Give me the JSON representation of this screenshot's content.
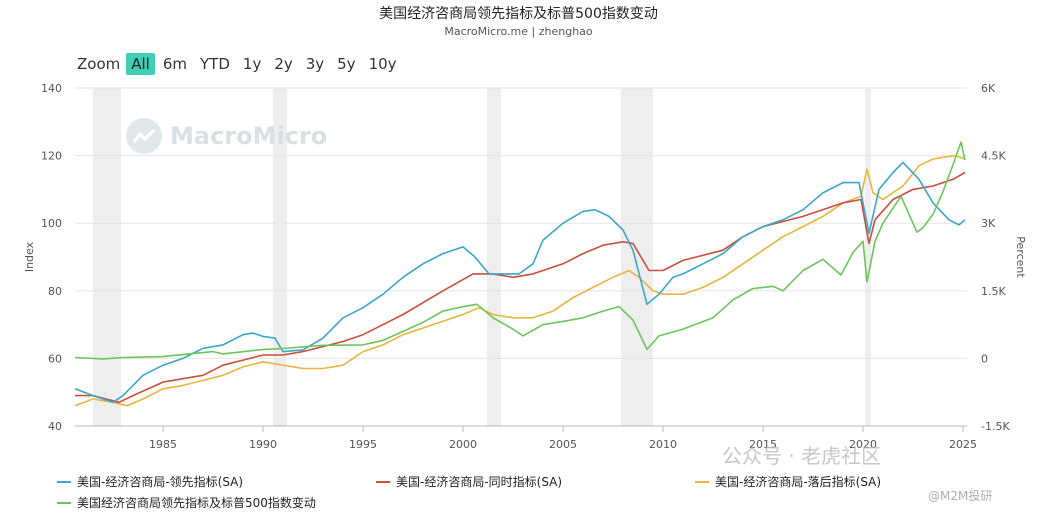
{
  "header": {
    "title": "美国经济咨商局领先指标及标普500指数变动",
    "subtitle": "MacroMicro.me | zhenghao"
  },
  "zoom": {
    "label": "Zoom",
    "options": [
      "All",
      "6m",
      "YTD",
      "1y",
      "2y",
      "3y",
      "5y",
      "10y"
    ],
    "active": "All"
  },
  "watermark": {
    "text": "MacroMicro"
  },
  "footer_mark": {
    "text": "公众号 · 老虎社区",
    "sub": "@M2M投研"
  },
  "colors": {
    "leading": "#3ba6c9",
    "coincident": "#c8503c",
    "lagging": "#e8b53e",
    "sp500": "#6cc55b",
    "recession": "#eeeeee"
  },
  "chart_data": {
    "type": "line",
    "x_ticks": [
      "1985",
      "1990",
      "1995",
      "2000",
      "2005",
      "2010",
      "2015",
      "2020",
      "2025"
    ],
    "xlim": [
      1980.6,
      2025.2
    ],
    "y_left": {
      "label": "Index",
      "ticks": [
        "40",
        "60",
        "80",
        "100",
        "120",
        "140"
      ],
      "lim": [
        40,
        140
      ]
    },
    "y_right": {
      "label": "Percent",
      "ticks": [
        "-1.5K",
        "0",
        "1.5K",
        "3K",
        "4.5K",
        "6K"
      ],
      "lim": [
        -1500,
        6000
      ]
    },
    "recessions": [
      [
        1981.5,
        1982.9
      ],
      [
        1990.5,
        1991.2
      ],
      [
        2001.2,
        2001.9
      ],
      [
        2007.9,
        2009.5
      ],
      [
        2020.1,
        2020.4
      ]
    ],
    "series": [
      {
        "name": "美国-经济咨商局-领先指标(SA)",
        "axis": "left",
        "points": [
          [
            1980.6,
            51
          ],
          [
            1981.5,
            49
          ],
          [
            1982.5,
            47
          ],
          [
            1983.0,
            49
          ],
          [
            1984.0,
            55
          ],
          [
            1985.0,
            58
          ],
          [
            1986.0,
            60
          ],
          [
            1987.0,
            63
          ],
          [
            1988.0,
            64
          ],
          [
            1989.0,
            67
          ],
          [
            1989.5,
            67.5
          ],
          [
            1990.0,
            66.5
          ],
          [
            1990.6,
            66
          ],
          [
            1991.0,
            62
          ],
          [
            1992.0,
            62.5
          ],
          [
            1993.0,
            66
          ],
          [
            1994.0,
            72
          ],
          [
            1995.0,
            75
          ],
          [
            1996.0,
            79
          ],
          [
            1997.0,
            84
          ],
          [
            1998.0,
            88
          ],
          [
            1999.0,
            91
          ],
          [
            2000.0,
            93
          ],
          [
            2000.6,
            90
          ],
          [
            2001.3,
            85
          ],
          [
            2002.0,
            85
          ],
          [
            2002.8,
            85
          ],
          [
            2003.5,
            88
          ],
          [
            2004.0,
            95
          ],
          [
            2005.0,
            100
          ],
          [
            2006.0,
            103.5
          ],
          [
            2006.6,
            104
          ],
          [
            2007.3,
            102
          ],
          [
            2008.0,
            98
          ],
          [
            2008.5,
            92
          ],
          [
            2009.2,
            76
          ],
          [
            2009.8,
            79
          ],
          [
            2010.5,
            84
          ],
          [
            2011.0,
            85
          ],
          [
            2012.0,
            88
          ],
          [
            2013.0,
            91
          ],
          [
            2014.0,
            96
          ],
          [
            2015.0,
            99
          ],
          [
            2016.0,
            101
          ],
          [
            2017.0,
            104
          ],
          [
            2018.0,
            109
          ],
          [
            2019.0,
            112
          ],
          [
            2019.8,
            112
          ],
          [
            2020.3,
            97
          ],
          [
            2020.8,
            110
          ],
          [
            2021.5,
            115
          ],
          [
            2022.0,
            118
          ],
          [
            2022.8,
            113
          ],
          [
            2023.5,
            106
          ],
          [
            2024.3,
            101
          ],
          [
            2024.8,
            99.5
          ],
          [
            2025.1,
            101
          ]
        ]
      },
      {
        "name": "美国-经济咨商局-同时指标(SA)",
        "axis": "left",
        "points": [
          [
            1980.6,
            49
          ],
          [
            1981.5,
            49
          ],
          [
            1982.8,
            47
          ],
          [
            1983.5,
            49
          ],
          [
            1985.0,
            53
          ],
          [
            1987.0,
            55
          ],
          [
            1988.0,
            58
          ],
          [
            1990.0,
            61
          ],
          [
            1991.0,
            61
          ],
          [
            1992.0,
            62
          ],
          [
            1994.0,
            65
          ],
          [
            1995.0,
            67
          ],
          [
            1997.0,
            73
          ],
          [
            1999.0,
            80
          ],
          [
            2000.5,
            85
          ],
          [
            2001.5,
            85
          ],
          [
            2002.5,
            84
          ],
          [
            2003.5,
            85
          ],
          [
            2005.0,
            88
          ],
          [
            2006.0,
            91
          ],
          [
            2007.0,
            93.5
          ],
          [
            2008.0,
            94.5
          ],
          [
            2008.5,
            94
          ],
          [
            2009.3,
            86
          ],
          [
            2010.0,
            86
          ],
          [
            2011.0,
            89
          ],
          [
            2013.0,
            92
          ],
          [
            2014.0,
            96
          ],
          [
            2015.0,
            99
          ],
          [
            2017.0,
            102
          ],
          [
            2019.0,
            106
          ],
          [
            2019.9,
            107
          ],
          [
            2020.3,
            94
          ],
          [
            2020.6,
            101
          ],
          [
            2021.5,
            107
          ],
          [
            2022.5,
            110
          ],
          [
            2023.5,
            111
          ],
          [
            2024.5,
            113
          ],
          [
            2025.1,
            115
          ]
        ]
      },
      {
        "name": "美国-经济咨商局-落后指标(SA)",
        "axis": "left",
        "points": [
          [
            1980.6,
            46
          ],
          [
            1981.5,
            48
          ],
          [
            1982.5,
            47
          ],
          [
            1983.2,
            46
          ],
          [
            1984.0,
            48
          ],
          [
            1985.0,
            51
          ],
          [
            1986.0,
            52
          ],
          [
            1987.0,
            53.5
          ],
          [
            1988.0,
            55
          ],
          [
            1989.0,
            57.5
          ],
          [
            1990.0,
            59
          ],
          [
            1991.0,
            58
          ],
          [
            1992.0,
            57
          ],
          [
            1993.0,
            57
          ],
          [
            1994.0,
            58
          ],
          [
            1995.0,
            62
          ],
          [
            1996.0,
            64
          ],
          [
            1997.0,
            67
          ],
          [
            1998.0,
            69
          ],
          [
            1999.0,
            71
          ],
          [
            2000.0,
            73
          ],
          [
            2000.8,
            75
          ],
          [
            2001.5,
            73
          ],
          [
            2002.5,
            72
          ],
          [
            2003.5,
            72
          ],
          [
            2004.5,
            74
          ],
          [
            2005.5,
            78
          ],
          [
            2006.5,
            81
          ],
          [
            2007.5,
            84
          ],
          [
            2008.3,
            86
          ],
          [
            2008.8,
            84
          ],
          [
            2009.5,
            80
          ],
          [
            2010.0,
            79
          ],
          [
            2011.0,
            79
          ],
          [
            2012.0,
            81
          ],
          [
            2013.0,
            84
          ],
          [
            2014.0,
            88
          ],
          [
            2015.0,
            92
          ],
          [
            2016.0,
            96
          ],
          [
            2017.0,
            99
          ],
          [
            2018.0,
            102
          ],
          [
            2019.0,
            106
          ],
          [
            2019.9,
            108
          ],
          [
            2020.2,
            116
          ],
          [
            2020.5,
            109
          ],
          [
            2021.0,
            107
          ],
          [
            2022.0,
            111
          ],
          [
            2022.8,
            117
          ],
          [
            2023.5,
            119
          ],
          [
            2024.0,
            119.5
          ],
          [
            2024.6,
            120
          ],
          [
            2025.1,
            119
          ]
        ]
      },
      {
        "name": "美国经济咨商局领先指标及标普500指数变动",
        "axis": "right",
        "points": [
          [
            1980.6,
            20
          ],
          [
            1982.0,
            -10
          ],
          [
            1983.0,
            20
          ],
          [
            1985.0,
            40
          ],
          [
            1987.5,
            150
          ],
          [
            1988.0,
            100
          ],
          [
            1990.0,
            200
          ],
          [
            1991.0,
            220
          ],
          [
            1993.0,
            290
          ],
          [
            1995.0,
            300
          ],
          [
            1996.0,
            400
          ],
          [
            1997.0,
            600
          ],
          [
            1998.0,
            800
          ],
          [
            1999.0,
            1050
          ],
          [
            2000.0,
            1150
          ],
          [
            2000.7,
            1200
          ],
          [
            2001.5,
            900
          ],
          [
            2002.5,
            650
          ],
          [
            2003.0,
            500
          ],
          [
            2004.0,
            750
          ],
          [
            2005.0,
            820
          ],
          [
            2006.0,
            900
          ],
          [
            2007.0,
            1050
          ],
          [
            2007.8,
            1150
          ],
          [
            2008.5,
            850
          ],
          [
            2009.2,
            200
          ],
          [
            2009.8,
            500
          ],
          [
            2011.0,
            650
          ],
          [
            2012.5,
            900
          ],
          [
            2013.5,
            1300
          ],
          [
            2014.5,
            1550
          ],
          [
            2015.5,
            1600
          ],
          [
            2016.0,
            1500
          ],
          [
            2017.0,
            1950
          ],
          [
            2018.0,
            2200
          ],
          [
            2018.9,
            1850
          ],
          [
            2019.5,
            2350
          ],
          [
            2020.0,
            2600
          ],
          [
            2020.2,
            1700
          ],
          [
            2020.6,
            2600
          ],
          [
            2021.0,
            3000
          ],
          [
            2021.9,
            3600
          ],
          [
            2022.7,
            2800
          ],
          [
            2023.0,
            2900
          ],
          [
            2023.5,
            3200
          ],
          [
            2024.0,
            3700
          ],
          [
            2024.5,
            4300
          ],
          [
            2024.9,
            4800
          ],
          [
            2025.1,
            4400
          ]
        ]
      }
    ]
  }
}
